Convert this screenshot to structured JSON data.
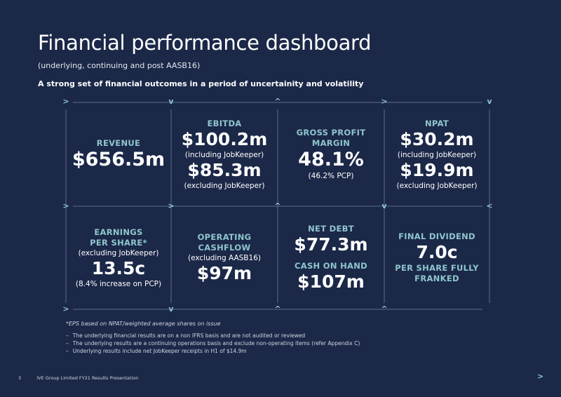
{
  "header": {
    "title": "Financial performance dashboard",
    "subtitle": "(underlying, continuing and post AASB16)",
    "tagline": "A strong set of financial outcomes in a period of uncertainity and volatility"
  },
  "metrics": {
    "revenue": {
      "label": "REVENUE",
      "value": "$656.5m"
    },
    "ebitda": {
      "label": "EBITDA",
      "value1": "$100.2m",
      "note1": "(including JobKeeper)",
      "value2": "$85.3m",
      "note2": "(excluding JobKeeper)"
    },
    "gross_profit_margin": {
      "label_line1": "GROSS PROFIT",
      "label_line2": "MARGIN",
      "value": "48.1%",
      "note": "(46.2% PCP)"
    },
    "npat": {
      "label": "NPAT",
      "value1": "$30.2m",
      "note1": "(including JobKeeper)",
      "value2": "$19.9m",
      "note2": "(excluding JobKeeper)"
    },
    "eps": {
      "label_line1": "EARNINGS",
      "label_line2": "PER SHARE*",
      "note1": "(excluding JobKeeper)",
      "value": "13.5c",
      "note2": "(8.4% increase on PCP)"
    },
    "operating_cashflow": {
      "label_line1": "OPERATING",
      "label_line2": "CASHFLOW",
      "note": "(excluding AASB16)",
      "value": "$97m"
    },
    "net_debt_cash": {
      "label1": "NET DEBT",
      "value1": "$77.3m",
      "label2": "CASH ON HAND",
      "value2": "$107m"
    },
    "final_dividend": {
      "label": "FINAL DIVIDEND",
      "value": "7.0c",
      "note_line1": "PER SHARE FULLY",
      "note_line2": "FRANKED"
    }
  },
  "grid_markers": {
    "right": ">",
    "left": "<",
    "down": "v",
    "up": "^"
  },
  "footnote": "*EPS based on NPAT/weighted average shares on issue",
  "bullets": [
    "The underlying financial results are on a non IFRS basis and are not audited or reviewed",
    "The underlying results are a continuing operations basis and exclude non-operating items (refer Appendix C)",
    "Underlying results include net JobKeeper receipts in H1 of $14.9m"
  ],
  "footer": {
    "page_number": "3",
    "text": "IVE Group Limited FY21 Results Presentation",
    "next_marker": ">"
  },
  "colors": {
    "background": "#1b2848",
    "accent": "#8fc6cc",
    "text": "#ffffff",
    "grid_line": "#5d6b88"
  }
}
